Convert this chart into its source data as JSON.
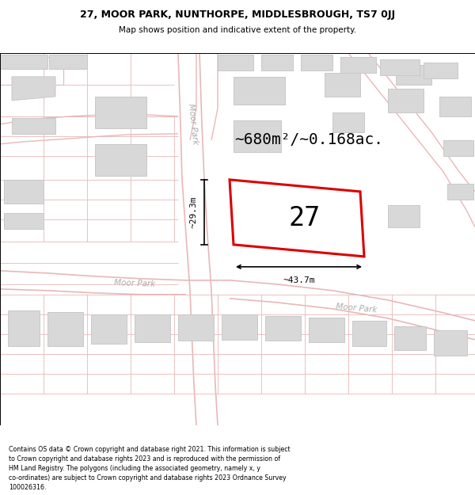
{
  "title_line1": "27, MOOR PARK, NUNTHORPE, MIDDLESBROUGH, TS7 0JJ",
  "title_line2": "Map shows position and indicative extent of the property.",
  "footer_text": "Contains OS data © Crown copyright and database right 2021. This information is subject\nto Crown copyright and database rights 2023 and is reproduced with the permission of\nHM Land Registry. The polygons (including the associated geometry, namely x, y\nco-ordinates) are subject to Crown copyright and database rights 2023 Ordnance Survey\n100026316.",
  "area_label": "~680m²/~0.168ac.",
  "house_number": "27",
  "width_label": "~43.7m",
  "height_label": "~29.3m",
  "map_bg": "#f9f7f7",
  "road_line_color": "#e8b8b8",
  "building_fill": "#d8d8d8",
  "building_outline": "#c8c8c8",
  "plot_fill": "#ffffff",
  "plot_outline": "#dd0000",
  "dim_color": "#333333",
  "road_label_color": "#aaaaaa",
  "title_fontsize": 9,
  "subtitle_fontsize": 7.5,
  "area_fontsize": 14,
  "number_fontsize": 24,
  "dim_fontsize": 8,
  "road_label_fontsize": 7.5
}
